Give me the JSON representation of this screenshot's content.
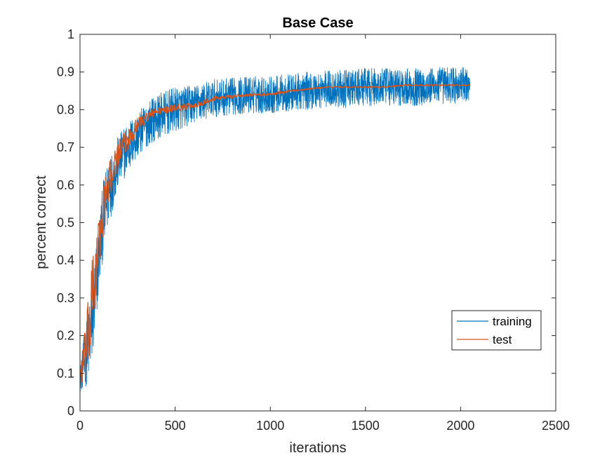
{
  "chart_data": {
    "type": "line",
    "title": "Base Case",
    "xlabel": "iterations",
    "ylabel": "percent correct",
    "xlim": [
      0,
      2500
    ],
    "ylim": [
      0,
      1
    ],
    "xticks": [
      "0",
      "500",
      "1000",
      "1500",
      "2000",
      "2500"
    ],
    "yticks": [
      "0",
      "0.1",
      "0.2",
      "0.3",
      "0.4",
      "0.5",
      "0.6",
      "0.7",
      "0.8",
      "0.9",
      "1"
    ],
    "grid": false,
    "legend_position": "bottom-right",
    "series": [
      {
        "name": "training",
        "color": "#0072BD",
        "noise_note": "highly noisy per-iteration accuracy; values below are approximate trend with amplitude",
        "x": [
          0,
          25,
          50,
          75,
          100,
          125,
          150,
          175,
          200,
          250,
          300,
          350,
          400,
          500,
          600,
          700,
          800,
          900,
          1000,
          1100,
          1200,
          1300,
          1400,
          1500,
          1600,
          1700,
          1800,
          1900,
          2000,
          2050
        ],
        "y": [
          0.08,
          0.14,
          0.18,
          0.28,
          0.42,
          0.52,
          0.58,
          0.62,
          0.66,
          0.7,
          0.73,
          0.76,
          0.78,
          0.8,
          0.815,
          0.83,
          0.835,
          0.84,
          0.84,
          0.845,
          0.85,
          0.855,
          0.855,
          0.86,
          0.86,
          0.86,
          0.86,
          0.865,
          0.865,
          0.865
        ],
        "amplitude": [
          0.03,
          0.08,
          0.1,
          0.12,
          0.1,
          0.1,
          0.09,
          0.08,
          0.07,
          0.07,
          0.06,
          0.06,
          0.06,
          0.06,
          0.05,
          0.05,
          0.05,
          0.05,
          0.05,
          0.05,
          0.05,
          0.05,
          0.05,
          0.05,
          0.05,
          0.05,
          0.05,
          0.05,
          0.05,
          0.04
        ]
      },
      {
        "name": "test",
        "color": "#D95319",
        "x": [
          0,
          20,
          40,
          60,
          80,
          100,
          120,
          140,
          160,
          180,
          200,
          220,
          250,
          300,
          350,
          400,
          450,
          500,
          600,
          700,
          800,
          900,
          1000,
          1100,
          1200,
          1300,
          1400,
          1500,
          1600,
          1700,
          1800,
          1900,
          2000,
          2050
        ],
        "y": [
          0.1,
          0.13,
          0.18,
          0.28,
          0.35,
          0.45,
          0.52,
          0.58,
          0.62,
          0.65,
          0.68,
          0.7,
          0.72,
          0.76,
          0.78,
          0.795,
          0.8,
          0.805,
          0.81,
          0.83,
          0.835,
          0.84,
          0.84,
          0.85,
          0.855,
          0.86,
          0.86,
          0.86,
          0.86,
          0.865,
          0.865,
          0.865,
          0.865,
          0.865
        ],
        "amplitude": [
          0.03,
          0.06,
          0.1,
          0.12,
          0.1,
          0.08,
          0.07,
          0.06,
          0.05,
          0.04,
          0.04,
          0.03,
          0.03,
          0.02,
          0.015,
          0.01,
          0.01,
          0.01,
          0.008,
          0.006,
          0.005,
          0.004,
          0.003,
          0.003,
          0.002,
          0.002,
          0.002,
          0.002,
          0.002,
          0.002,
          0.002,
          0.002,
          0.002,
          0.002
        ]
      }
    ]
  }
}
